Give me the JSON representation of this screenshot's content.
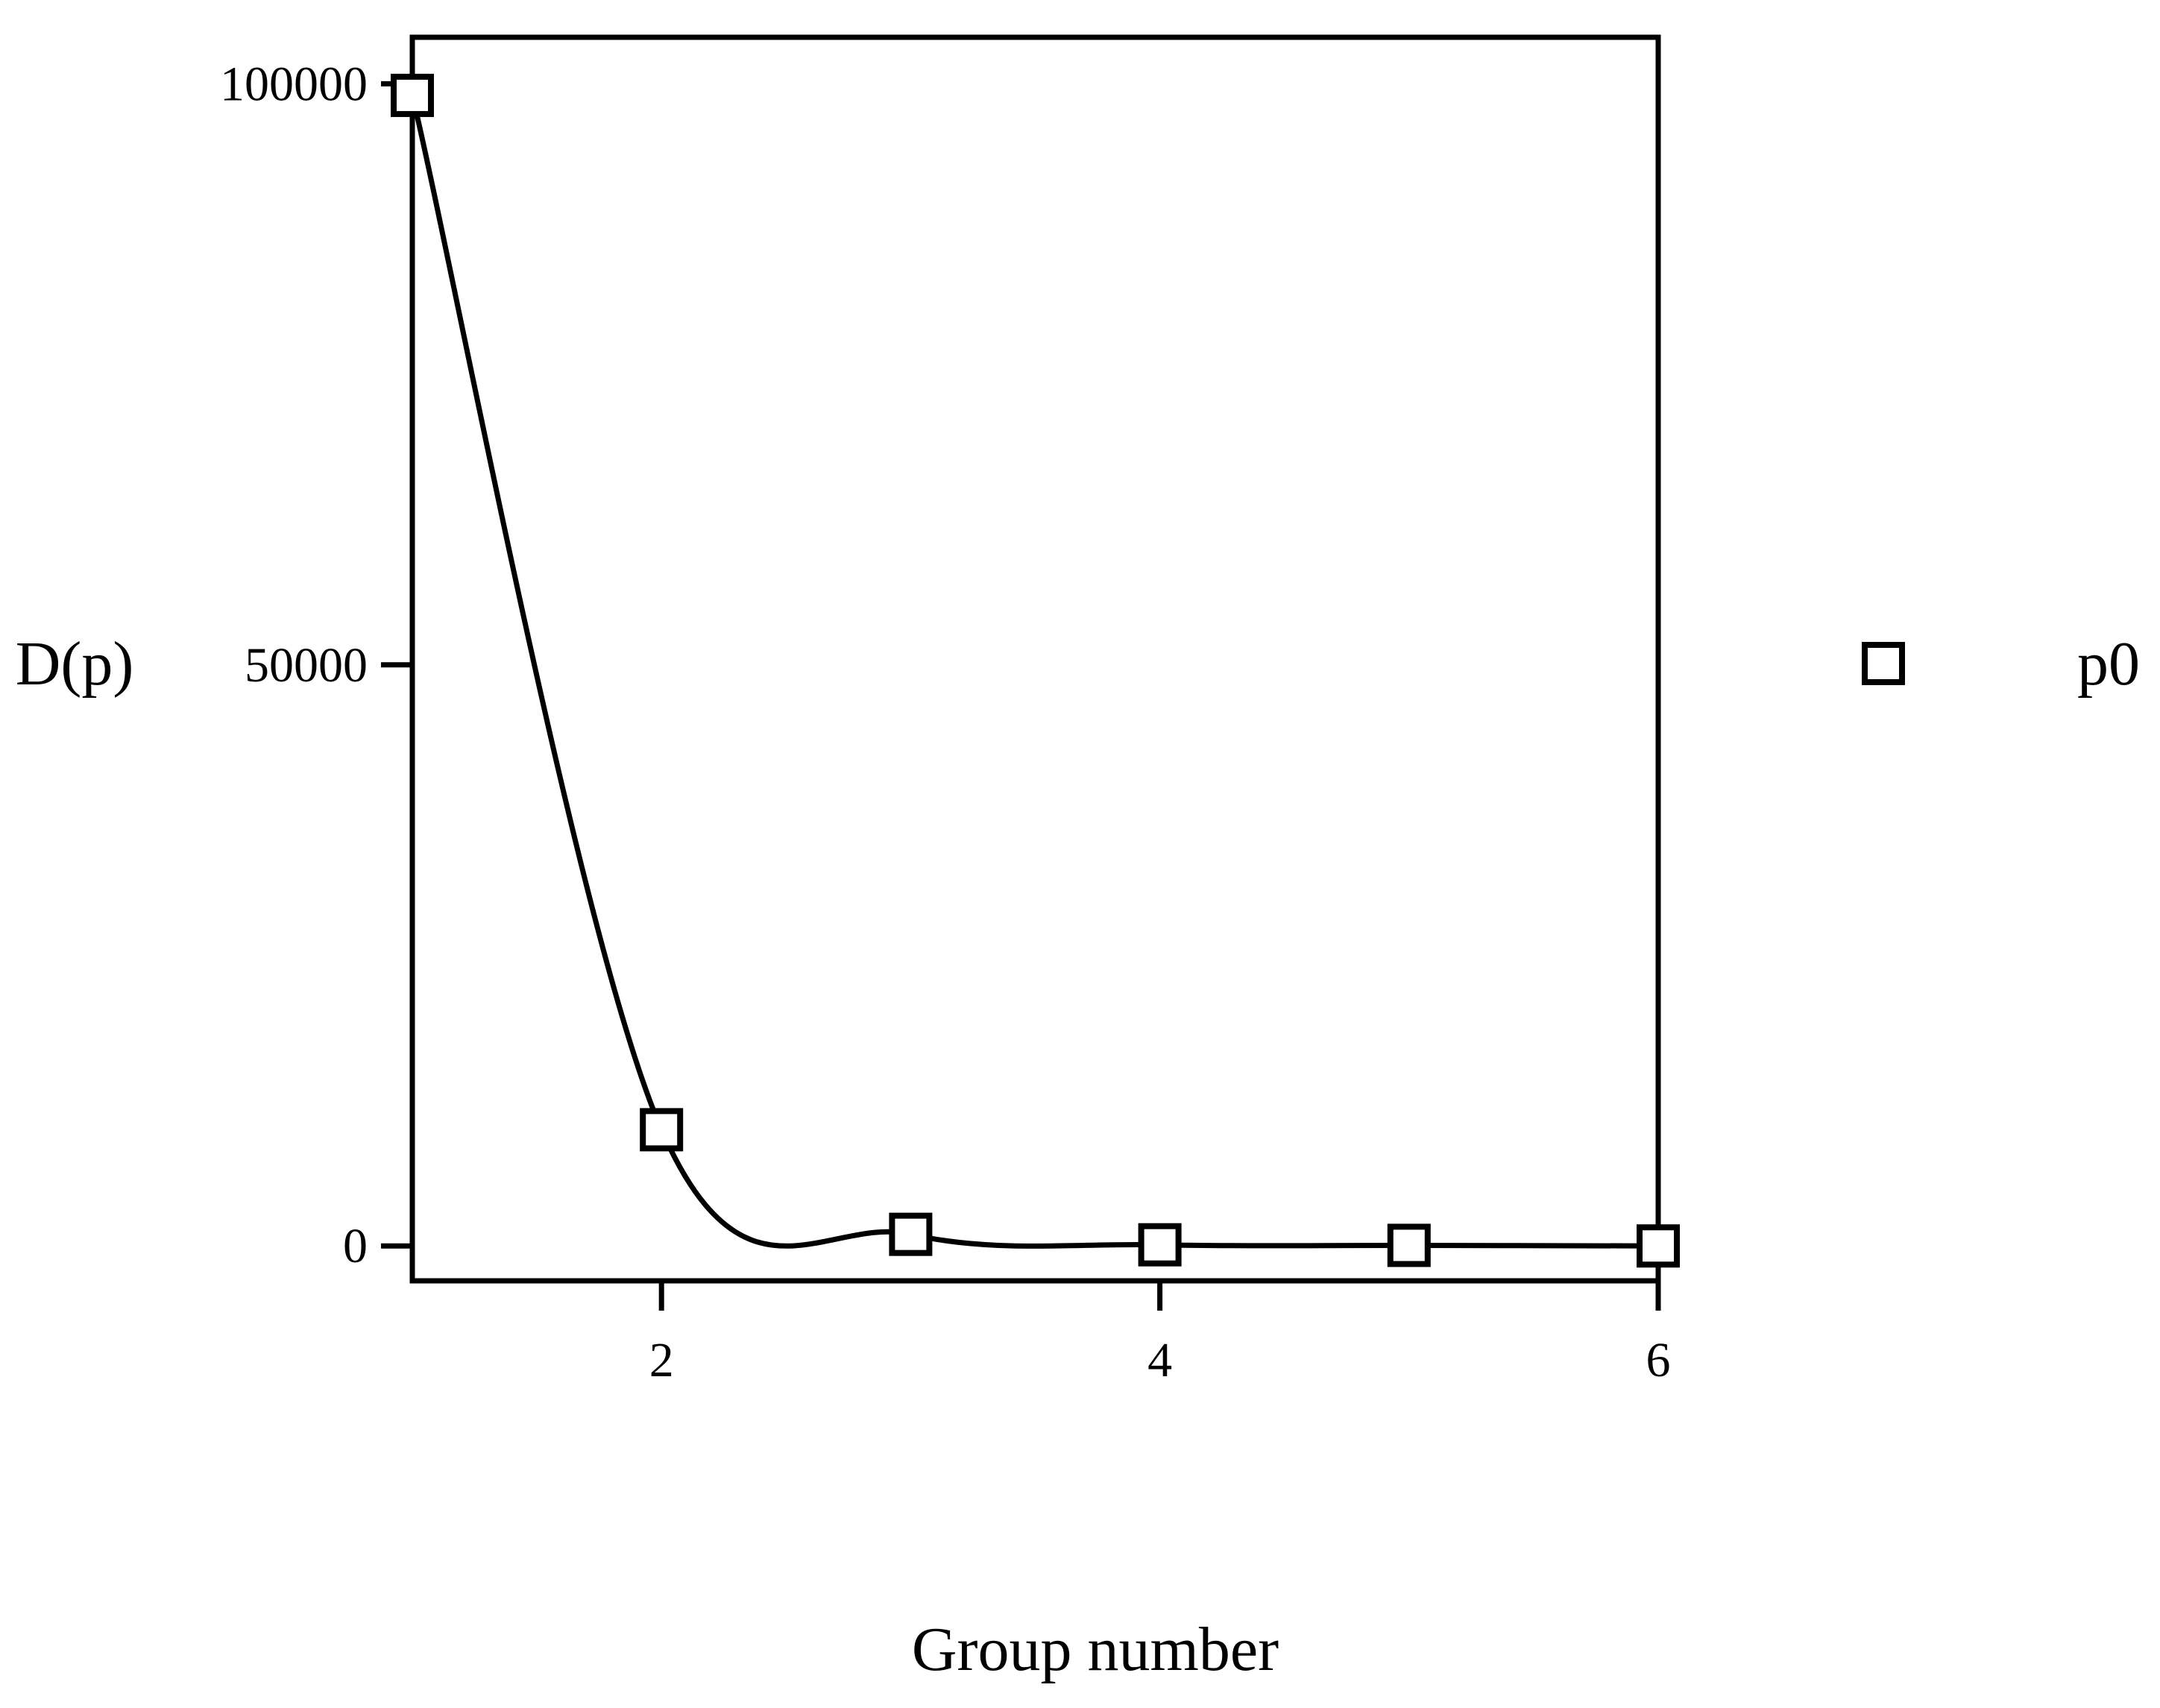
{
  "chart_data": {
    "type": "line",
    "xlabel": "Group number",
    "ylabel": "D(p)",
    "xlim": [
      1,
      6
    ],
    "ylim": [
      -3000,
      104000
    ],
    "x_ticks": [
      {
        "value": 2,
        "label": "2"
      },
      {
        "value": 4,
        "label": "4"
      },
      {
        "value": 6,
        "label": "6"
      }
    ],
    "y_ticks": [
      {
        "value": 0,
        "label": "0"
      },
      {
        "value": 50000,
        "label": "50000"
      },
      {
        "value": 100000,
        "label": "100000"
      }
    ],
    "grid": false,
    "legend_position": "right",
    "series": [
      {
        "name": "p0",
        "marker": "open-square",
        "smooth": true,
        "color": "#000000",
        "x": [
          1,
          2,
          3,
          4,
          5,
          6
        ],
        "y": [
          99000,
          10000,
          1000,
          100,
          50,
          0
        ]
      }
    ]
  }
}
